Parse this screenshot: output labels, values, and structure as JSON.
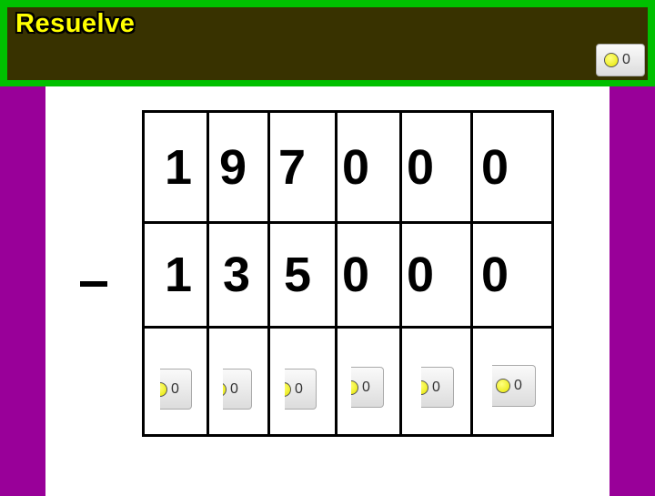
{
  "header": {
    "title": "Resuelve",
    "score_button": {
      "icon": "coin-icon",
      "value": "0"
    }
  },
  "operation": {
    "operator": "minus",
    "minuend": [
      "1",
      "9",
      "7",
      "0",
      "0",
      "0"
    ],
    "subtrahend": [
      "1",
      "3",
      "5",
      "0",
      "0",
      "0"
    ],
    "answer_buttons": [
      {
        "value": "0"
      },
      {
        "value": "0"
      },
      {
        "value": "0"
      },
      {
        "value": "0"
      },
      {
        "value": "0"
      },
      {
        "value": "0"
      }
    ]
  },
  "colors": {
    "frame": "#00c000",
    "header": "#383200",
    "title": "#ffff00",
    "side": "#990099"
  }
}
